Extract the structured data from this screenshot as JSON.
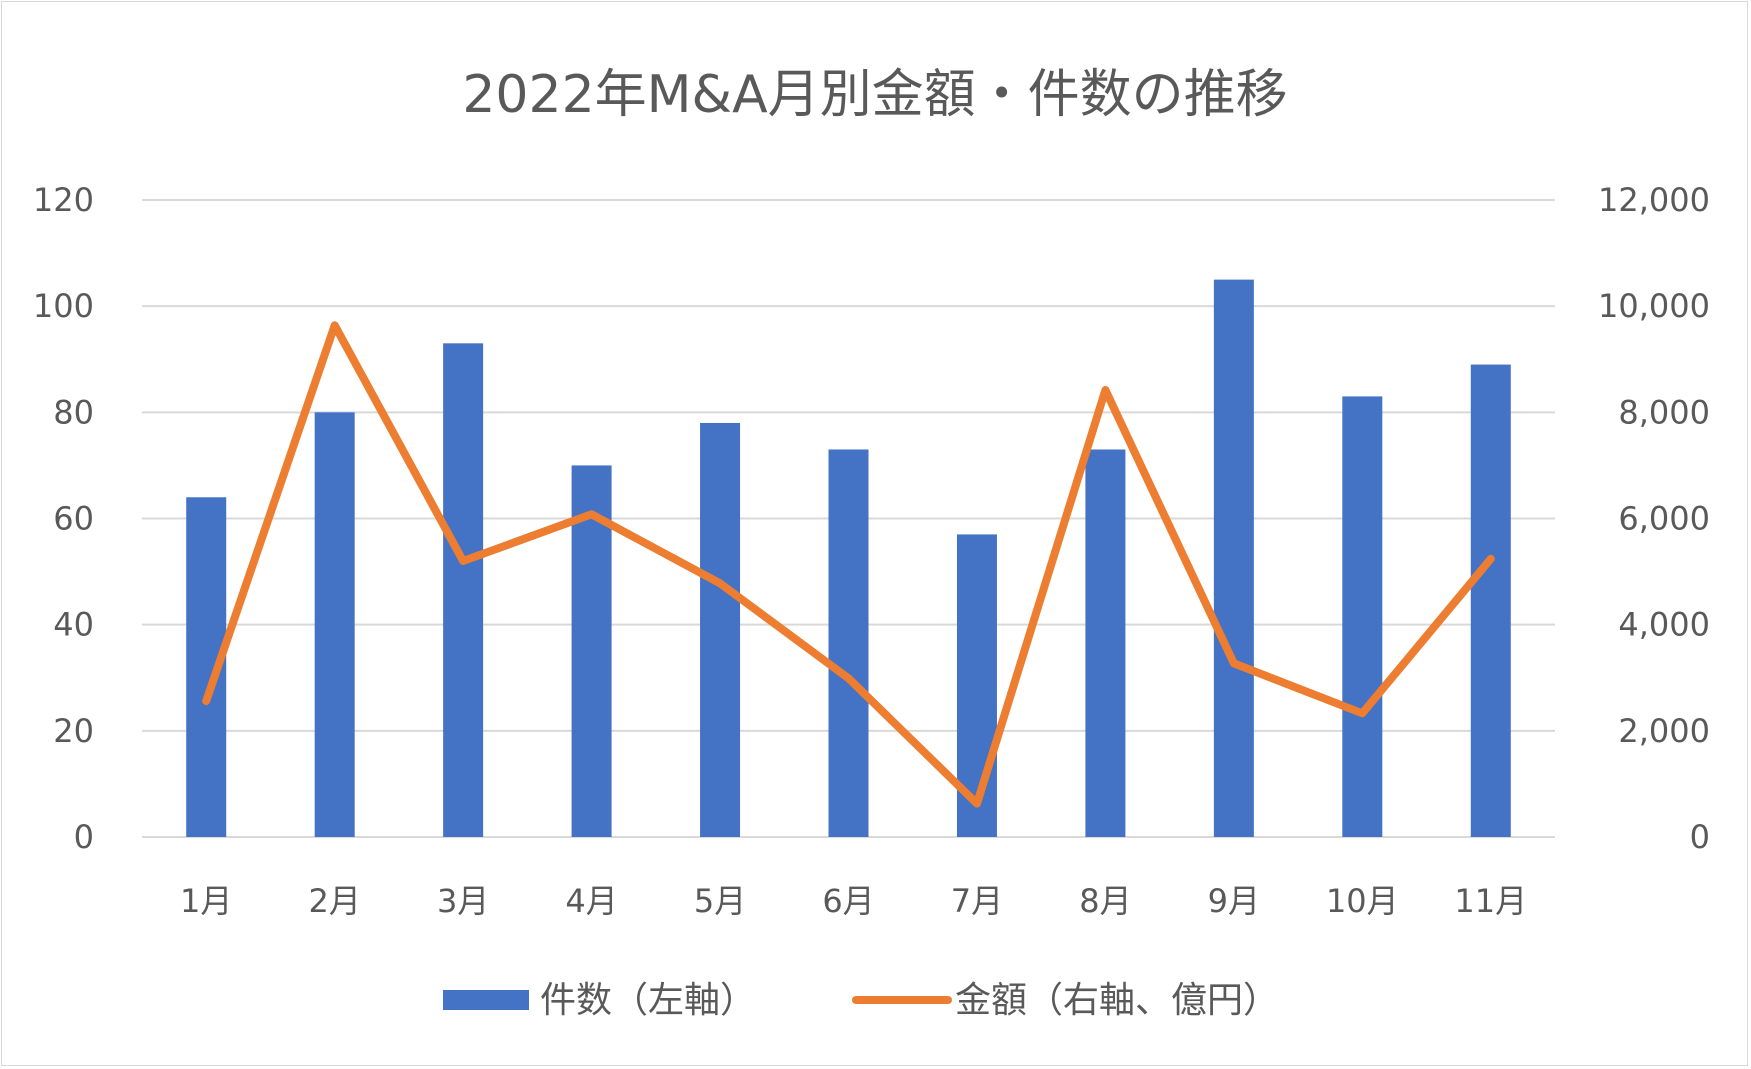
{
  "chart_data": {
    "type": "bar+line",
    "title": "2022年M&A月別金額・件数の推移",
    "categories": [
      "1月",
      "2月",
      "3月",
      "4月",
      "5月",
      "6月",
      "7月",
      "8月",
      "9月",
      "10月",
      "11月"
    ],
    "series": [
      {
        "name": "件数（左軸）",
        "type": "bar",
        "axis": "left",
        "color": "#4472C4",
        "values": [
          64,
          80,
          93,
          70,
          78,
          73,
          57,
          73,
          105,
          83,
          89
        ]
      },
      {
        "name": "金額（右軸、億円）",
        "type": "line",
        "axis": "right",
        "color": "#ED7D31",
        "values": [
          2560,
          9640,
          5200,
          6080,
          4780,
          2990,
          630,
          8420,
          3270,
          2330,
          5240
        ]
      }
    ],
    "left_axis": {
      "min": 0,
      "max": 120,
      "step": 20,
      "ticks": [
        "0",
        "20",
        "40",
        "60",
        "80",
        "100",
        "120"
      ]
    },
    "right_axis": {
      "min": 0,
      "max": 12000,
      "step": 2000,
      "ticks": [
        "0",
        "2,000",
        "4,000",
        "6,000",
        "8,000",
        "10,000",
        "12,000"
      ]
    },
    "grid": true,
    "legend_position": "bottom"
  }
}
